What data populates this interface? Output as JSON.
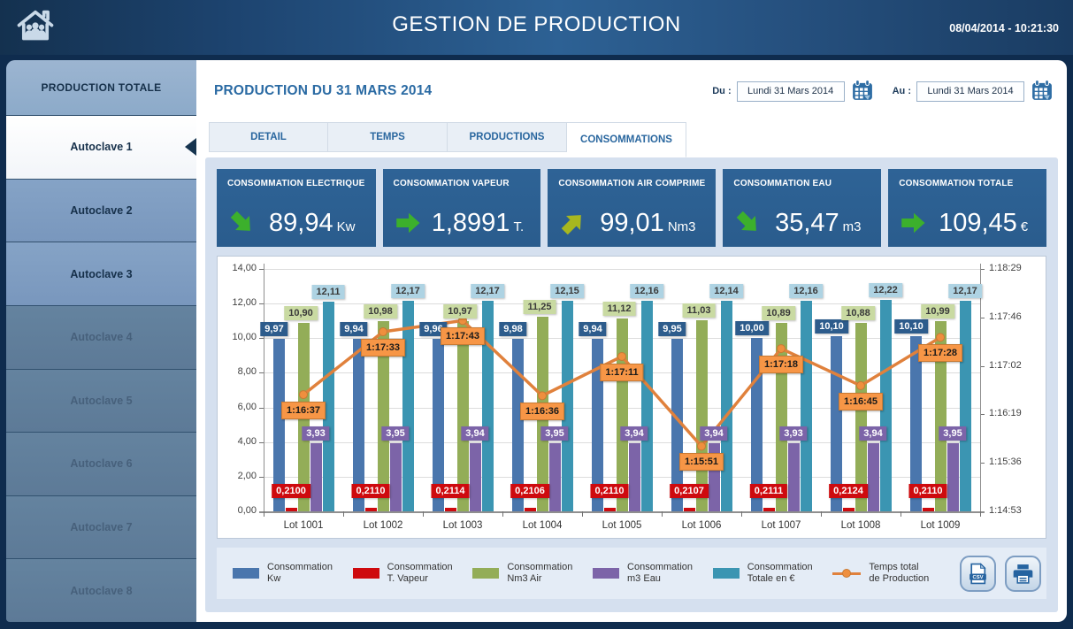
{
  "header": {
    "title": "GESTION DE PRODUCTION",
    "datetime": "08/04/2014 - 10:21:30"
  },
  "sidebar": {
    "items": [
      {
        "label": "PRODUCTION TOTALE",
        "kind": "total"
      },
      {
        "label": "Autoclave 1",
        "kind": "active"
      },
      {
        "label": "Autoclave 2",
        "kind": "normal"
      },
      {
        "label": "Autoclave 3",
        "kind": "normal"
      },
      {
        "label": "Autoclave 4",
        "kind": "disabled"
      },
      {
        "label": "Autoclave 5",
        "kind": "disabled"
      },
      {
        "label": "Autoclave 6",
        "kind": "disabled"
      },
      {
        "label": "Autoclave 7",
        "kind": "disabled"
      },
      {
        "label": "Autoclave 8",
        "kind": "disabled"
      }
    ]
  },
  "main": {
    "title": "PRODUCTION DU 31 MARS 2014",
    "date_from_label": "Du :",
    "date_from": "Lundi 31 Mars 2014",
    "date_to_label": "Au :",
    "date_to": "Lundi 31 Mars 2014",
    "tabs": [
      {
        "label": "DETAIL",
        "active": false
      },
      {
        "label": "TEMPS",
        "active": false
      },
      {
        "label": "PRODUCTIONS",
        "active": false
      },
      {
        "label": "CONSOMMATIONS",
        "active": true
      }
    ]
  },
  "kpis": [
    {
      "title": "CONSOMMATION ELECTRIQUE",
      "value": "89,94",
      "unit": "Kw",
      "trend": "down",
      "trend_color": "#3cb02c"
    },
    {
      "title": "CONSOMMATION VAPEUR",
      "value": "1,8991",
      "unit": "T.",
      "trend": "flat",
      "trend_color": "#3cb02c"
    },
    {
      "title": "CONSOMMATION AIR COMPRIME",
      "value": "99,01",
      "unit": "Nm3",
      "trend": "up",
      "trend_color": "#a7b71f"
    },
    {
      "title": "CONSOMMATION EAU",
      "value": "35,47",
      "unit": "m3",
      "trend": "down",
      "trend_color": "#3cb02c"
    },
    {
      "title": "CONSOMMATION TOTALE",
      "value": "109,45",
      "unit": "€",
      "trend": "flat",
      "trend_color": "#3cb02c"
    }
  ],
  "chart_data": {
    "type": "bar+line",
    "categories": [
      "Lot 1001",
      "Lot 1002",
      "Lot 1003",
      "Lot 1004",
      "Lot 1005",
      "Lot 1006",
      "Lot 1007",
      "Lot 1008",
      "Lot 1009"
    ],
    "left_axis": {
      "min": 0,
      "max": 14,
      "step": 2,
      "tick_labels": [
        "0,00",
        "2,00",
        "4,00",
        "6,00",
        "8,00",
        "10,00",
        "12,00",
        "14,00"
      ]
    },
    "right_axis": {
      "tick_labels": [
        "1:14:53",
        "1:15:36",
        "1:16:19",
        "1:17:02",
        "1:17:46",
        "1:18:29"
      ]
    },
    "series": [
      {
        "key": "kw",
        "name": "Consommation Kw",
        "color": "#4a76ad",
        "label_bg": "#2d5c8c",
        "label_color": "#ffffff",
        "values": [
          9.97,
          9.94,
          9.96,
          9.98,
          9.94,
          9.95,
          10.0,
          10.1,
          10.1
        ],
        "labels": [
          "9,97",
          "9,94",
          "9,96",
          "9,98",
          "9,94",
          "9,95",
          "10,00",
          "10,10",
          "10,10"
        ]
      },
      {
        "key": "vapeur",
        "name": "Consommation T. Vapeur",
        "color": "#ce0a0e",
        "label_bg": "#ce0a0e",
        "label_color": "#ffffff",
        "values": [
          0.21,
          0.211,
          0.2114,
          0.2106,
          0.211,
          0.2107,
          0.2111,
          0.2124,
          0.211
        ],
        "labels": [
          "0,2100",
          "0,2110",
          "0,2114",
          "0,2106",
          "0,2110",
          "0,2107",
          "0,2111",
          "0,2124",
          "0,2110"
        ]
      },
      {
        "key": "air",
        "name": "Consommation Nm3 Air",
        "color": "#93ad58",
        "label_bg": "#c9daa2",
        "label_color": "#3a3a3a",
        "values": [
          10.9,
          10.98,
          10.97,
          11.25,
          11.12,
          11.03,
          10.89,
          10.88,
          10.99
        ],
        "labels": [
          "10,90",
          "10,98",
          "10,97",
          "11,25",
          "11,12",
          "11,03",
          "10,89",
          "10,88",
          "10,99"
        ]
      },
      {
        "key": "eau",
        "name": "Consommation m3 Eau",
        "color": "#7c64a8",
        "label_bg": "#7c64a8",
        "label_color": "#ffffff",
        "values": [
          3.93,
          3.95,
          3.94,
          3.95,
          3.94,
          3.94,
          3.93,
          3.94,
          3.95
        ],
        "labels": [
          "3,93",
          "3,95",
          "3,94",
          "3,95",
          "3,94",
          "3,94",
          "3,93",
          "3,94",
          "3,95"
        ]
      },
      {
        "key": "totale",
        "name": "Consommation Totale en €",
        "color": "#3b95b2",
        "label_bg": "#aed3e3",
        "label_color": "#3a3a3a",
        "values": [
          12.11,
          12.17,
          12.17,
          12.15,
          12.16,
          12.14,
          12.16,
          12.22,
          12.17
        ],
        "labels": [
          "12,11",
          "12,17",
          "12,17",
          "12,15",
          "12,16",
          "12,14",
          "12,16",
          "12,22",
          "12,17"
        ]
      }
    ],
    "line_series": {
      "key": "temps",
      "name": "Temps total de Production",
      "color": "#e0813c",
      "marker_color": "#ef8f3e",
      "label_bg": "#f79646",
      "values": [
        "1:16:37",
        "1:17:33",
        "1:17:43",
        "1:16:36",
        "1:17:11",
        "1:15:51",
        "1:17:18",
        "1:16:45",
        "1:17:28"
      ]
    }
  },
  "legend": [
    {
      "line1": "Consommation",
      "line2": "Kw",
      "color": "#4a76ad",
      "type": "box"
    },
    {
      "line1": "Consommation",
      "line2": "T. Vapeur",
      "color": "#ce0a0e",
      "type": "box"
    },
    {
      "line1": "Consommation",
      "line2": "Nm3 Air",
      "color": "#93ad58",
      "type": "box"
    },
    {
      "line1": "Consommation",
      "line2": "m3 Eau",
      "color": "#7c64a8",
      "type": "box"
    },
    {
      "line1": "Consommation",
      "line2": "Totale en €",
      "color": "#3b95b2",
      "type": "box"
    },
    {
      "line1": "Temps total",
      "line2": "de Production",
      "color": "#e0813c",
      "type": "line"
    }
  ],
  "buttons": {
    "csv": "CSV"
  }
}
